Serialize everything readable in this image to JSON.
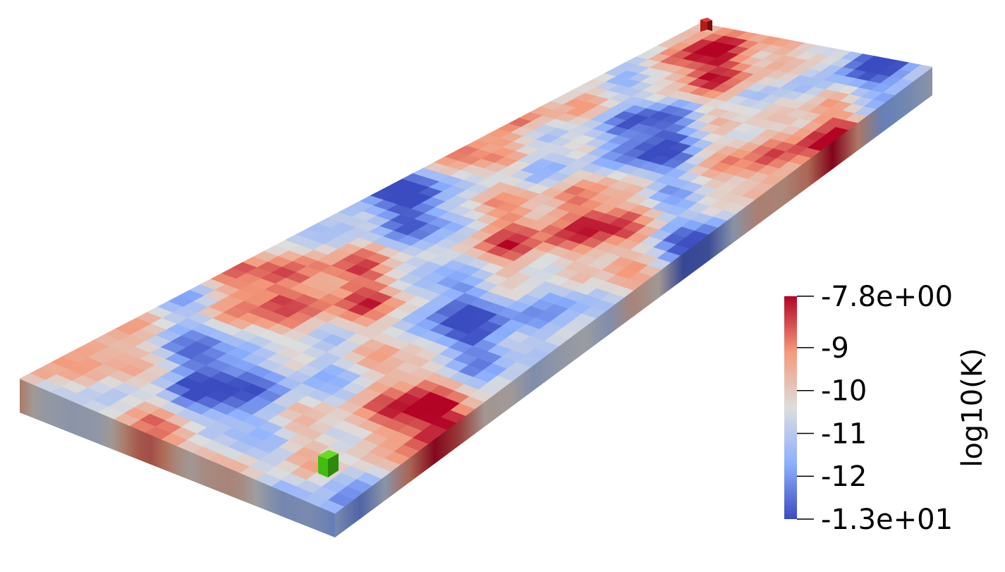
{
  "colorbar": {
    "title": "log10(K)",
    "range": [
      -13,
      -7.8
    ],
    "ticks": [
      {
        "value": -7.8,
        "label": "-7.8e+00"
      },
      {
        "value": -9,
        "label": "-9"
      },
      {
        "value": -10,
        "label": "-10"
      },
      {
        "value": -11,
        "label": "-11"
      },
      {
        "value": -12,
        "label": "-12"
      },
      {
        "value": -13,
        "label": "-1.3e+01"
      }
    ],
    "colormap": [
      "#3b4cc0",
      "#8db0fe",
      "#dddddd",
      "#f49a7b",
      "#b40426"
    ]
  },
  "markers": {
    "source_color": "#44bb11",
    "sink_color": "#b41a1a"
  }
}
